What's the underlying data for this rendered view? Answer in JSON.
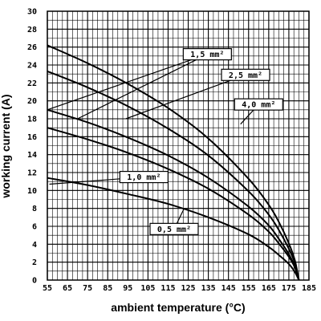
{
  "chart_data": {
    "type": "line",
    "xlabel": "ambient temperature (°C)",
    "ylabel": "working current (A)",
    "xlim": [
      55,
      185
    ],
    "ylim": [
      0,
      30
    ],
    "x_ticks": [
      55,
      65,
      75,
      85,
      95,
      105,
      115,
      125,
      135,
      145,
      155,
      165,
      175,
      185
    ],
    "y_ticks": [
      0,
      2,
      4,
      6,
      8,
      10,
      12,
      14,
      16,
      18,
      20,
      22,
      24,
      26,
      28,
      30
    ],
    "grid": true,
    "series": [
      {
        "name": "0,5 mm²",
        "x": [
          55,
          75,
          95,
          115,
          135,
          155,
          165,
          170,
          175,
          178,
          180
        ],
        "y": [
          11.4,
          10.6,
          9.6,
          8.5,
          7.0,
          5.1,
          3.7,
          2.8,
          1.8,
          0.9,
          0
        ]
      },
      {
        "name": "1,0 mm²",
        "x": [
          55,
          75,
          95,
          115,
          135,
          155,
          165,
          170,
          175,
          178,
          180
        ],
        "y": [
          17.0,
          15.7,
          14.2,
          12.4,
          10.2,
          7.3,
          5.4,
          4.1,
          2.6,
          1.4,
          0
        ]
      },
      {
        "name": "1,5 mm²",
        "x": [
          55,
          75,
          95,
          115,
          135,
          155,
          165,
          170,
          175,
          178,
          180
        ],
        "y": [
          19.0,
          17.6,
          15.9,
          13.9,
          11.4,
          8.2,
          6.1,
          4.6,
          2.9,
          1.5,
          0
        ]
      },
      {
        "name": "2,5 mm²",
        "x": [
          55,
          75,
          95,
          115,
          135,
          155,
          165,
          170,
          175,
          178,
          180
        ],
        "y": [
          23.3,
          21.5,
          19.4,
          16.9,
          13.9,
          9.9,
          7.3,
          5.6,
          3.5,
          1.9,
          0
        ]
      },
      {
        "name": "4,0 mm²",
        "x": [
          55,
          75,
          95,
          115,
          135,
          155,
          165,
          170,
          175,
          178,
          180
        ],
        "y": [
          26.2,
          24.2,
          21.9,
          19.2,
          15.8,
          11.3,
          8.4,
          6.5,
          4.1,
          2.2,
          0
        ]
      }
    ],
    "annotations": [
      {
        "text": "1,5 mm²",
        "x": 134.5,
        "y": 25.2,
        "target_x": 55,
        "target_y": 19.0,
        "target2_x": 70,
        "target2_y": 18.0
      },
      {
        "text": "2,5 mm²",
        "x": 153.5,
        "y": 22.9,
        "target_x": 94,
        "target_y": 18.0
      },
      {
        "text": "4,0 mm²",
        "x": 160,
        "y": 19.6,
        "target_x": 151,
        "target_y": 17.4
      },
      {
        "text": "1,0 mm²",
        "x": 103,
        "y": 11.5,
        "target_x": 56,
        "target_y": 10.7
      },
      {
        "text": "0,5 mm²",
        "x": 118,
        "y": 5.7,
        "target_x": 123,
        "target_y": 8.0
      }
    ]
  }
}
